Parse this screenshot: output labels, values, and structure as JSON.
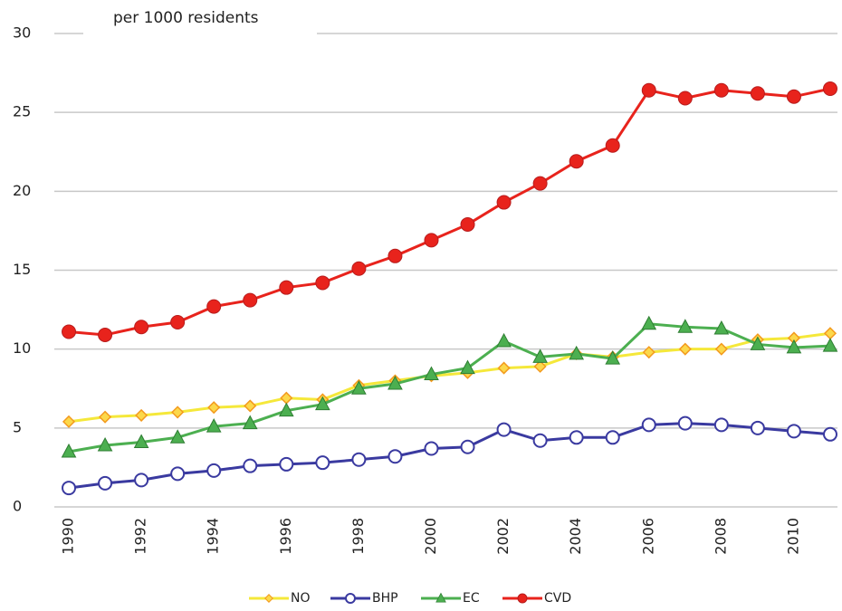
{
  "chart_data": {
    "type": "line",
    "title": "per 1000 residents",
    "x": [
      1990,
      1991,
      1992,
      1993,
      1994,
      1995,
      1996,
      1997,
      1998,
      1999,
      2000,
      2001,
      2002,
      2003,
      2004,
      2005,
      2006,
      2007,
      2008,
      2009,
      2010,
      2011
    ],
    "xlim": [
      1989.6,
      2011.2
    ],
    "xticks": [
      1990,
      1992,
      1994,
      1996,
      1998,
      2000,
      2002,
      2004,
      2006,
      2008,
      2010
    ],
    "ylim": [
      0,
      30
    ],
    "yticks": [
      0,
      5,
      10,
      15,
      20,
      25,
      30
    ],
    "grid": true,
    "legend": "bottom",
    "series": [
      {
        "name": "NO",
        "color": "#f5e83a",
        "marker": "diamond",
        "values": [
          5.4,
          5.7,
          5.8,
          6.0,
          6.3,
          6.4,
          6.9,
          6.8,
          7.7,
          8.0,
          8.3,
          8.5,
          8.8,
          8.9,
          9.7,
          9.5,
          9.8,
          10.0,
          10.0,
          10.6,
          10.7,
          11.0
        ]
      },
      {
        "name": "BHP",
        "color": "#3a3aa0",
        "marker": "open-circle",
        "values": [
          1.2,
          1.5,
          1.7,
          2.1,
          2.3,
          2.6,
          2.7,
          2.8,
          3.0,
          3.2,
          3.7,
          3.8,
          4.9,
          4.2,
          4.4,
          4.4,
          5.2,
          5.3,
          5.2,
          5.0,
          4.8,
          4.6
        ]
      },
      {
        "name": "EC",
        "color": "#4caf50",
        "marker": "triangle",
        "values": [
          3.5,
          3.9,
          4.1,
          4.4,
          5.1,
          5.3,
          6.1,
          6.5,
          7.5,
          7.8,
          8.4,
          8.8,
          10.5,
          9.5,
          9.7,
          9.4,
          11.6,
          11.4,
          11.3,
          10.3,
          10.1,
          10.2
        ]
      },
      {
        "name": "CVD",
        "color": "#e8231c",
        "marker": "circle",
        "values": [
          11.1,
          10.9,
          11.4,
          11.7,
          12.7,
          13.1,
          13.9,
          14.2,
          15.1,
          15.9,
          16.9,
          17.9,
          19.3,
          20.5,
          21.9,
          22.9,
          26.4,
          25.9,
          26.4,
          26.2,
          26.0,
          26.5
        ]
      }
    ]
  }
}
